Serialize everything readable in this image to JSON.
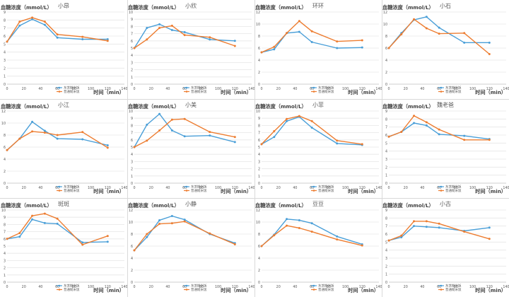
{
  "shared": {
    "ylabel": "血糖浓度（mmol/L）",
    "xlabel": "时间（min）",
    "x_ticks": [
      0,
      20,
      40,
      60,
      80,
      100,
      120,
      140
    ],
    "legend": [
      "东芝糙米饭",
      "普通糙米饭"
    ],
    "colors": {
      "series1": "#4a9fd8",
      "series2": "#ed7d31",
      "grid": "#e6e6e6",
      "axis": "#bfbfbf",
      "text": "#595959"
    }
  },
  "chart_data": [
    {
      "type": "line",
      "title": "小昂",
      "ylim": [
        0,
        9
      ],
      "yticks": [
        0,
        1,
        2,
        3,
        4,
        5,
        6,
        7,
        8,
        9
      ],
      "x": [
        0,
        15,
        30,
        45,
        60,
        90,
        120
      ],
      "series": [
        {
          "name": "东芝糙米饭",
          "values": [
            5.3,
            7.3,
            8.1,
            7.4,
            5.8,
            5.6,
            5.6
          ]
        },
        {
          "name": "普通糙米饭",
          "values": [
            5.3,
            7.8,
            8.3,
            7.8,
            6.2,
            5.9,
            5.4
          ]
        }
      ]
    },
    {
      "type": "line",
      "title": "小欣",
      "ylim": [
        0,
        10
      ],
      "yticks": [
        0,
        1,
        2,
        3,
        4,
        5,
        6,
        7,
        8,
        9,
        10
      ],
      "x": [
        0,
        15,
        30,
        45,
        60,
        90,
        120
      ],
      "series": [
        {
          "name": "东芝糙米饭",
          "values": [
            5.0,
            7.8,
            8.3,
            7.5,
            7.2,
            6.2,
            6.0
          ]
        },
        {
          "name": "普通糙米饭",
          "values": [
            5.0,
            6.2,
            7.8,
            8.1,
            6.8,
            6.5,
            5.3
          ]
        }
      ]
    },
    {
      "type": "line",
      "title": "环环",
      "ylim": [
        0,
        12
      ],
      "yticks": [
        0,
        2,
        4,
        6,
        8,
        10,
        12
      ],
      "x": [
        0,
        15,
        30,
        45,
        60,
        90,
        120
      ],
      "series": [
        {
          "name": "东芝糙米饭",
          "values": [
            5.3,
            5.8,
            8.5,
            8.7,
            7.0,
            6.0,
            6.1
          ]
        },
        {
          "name": "普通糙米饭",
          "values": [
            5.3,
            6.2,
            8.5,
            10.5,
            8.8,
            7.1,
            7.3
          ]
        }
      ]
    },
    {
      "type": "line",
      "title": "小石",
      "ylim": [
        0,
        12
      ],
      "yticks": [
        0,
        2,
        4,
        6,
        8,
        10,
        12
      ],
      "x": [
        0,
        15,
        30,
        45,
        60,
        90,
        120
      ],
      "series": [
        {
          "name": "东芝糙米饭",
          "values": [
            6.0,
            8.5,
            10.7,
            11.2,
            9.4,
            6.9,
            6.9
          ]
        },
        {
          "name": "普通糙米饭",
          "values": [
            6.0,
            8.3,
            10.8,
            9.3,
            8.4,
            8.5,
            5.0
          ]
        }
      ]
    },
    {
      "type": "line",
      "title": "小江",
      "ylim": [
        0,
        12
      ],
      "yticks": [
        0,
        2,
        4,
        6,
        8,
        10,
        12
      ],
      "x": [
        0,
        15,
        30,
        45,
        60,
        90,
        120
      ],
      "series": [
        {
          "name": "东芝糙米饭",
          "values": [
            5.5,
            7.4,
            10.2,
            8.7,
            7.4,
            7.3,
            6.3
          ]
        },
        {
          "name": "普通糙米饭",
          "values": [
            5.5,
            7.4,
            8.6,
            8.4,
            8.0,
            8.5,
            5.9
          ]
        }
      ]
    },
    {
      "type": "line",
      "title": "小美",
      "ylim": [
        0,
        10
      ],
      "yticks": [
        0,
        1,
        2,
        3,
        4,
        5,
        6,
        7,
        8,
        9,
        10
      ],
      "x": [
        0,
        15,
        30,
        45,
        60,
        90,
        120
      ],
      "series": [
        {
          "name": "东芝糙米饭",
          "values": [
            5.0,
            8.1,
            9.6,
            7.3,
            6.5,
            6.6,
            5.7
          ]
        },
        {
          "name": "普通糙米饭",
          "values": [
            5.0,
            5.9,
            7.3,
            8.8,
            8.9,
            7.1,
            6.4
          ]
        }
      ]
    },
    {
      "type": "line",
      "title": "小菲",
      "ylim": [
        0,
        10
      ],
      "yticks": [
        0,
        1,
        2,
        3,
        4,
        5,
        6,
        7,
        8,
        9,
        10
      ],
      "x": [
        0,
        15,
        30,
        45,
        60,
        90,
        120
      ],
      "series": [
        {
          "name": "东芝糙米饭",
          "values": [
            5.4,
            6.4,
            8.6,
            9.2,
            7.7,
            5.5,
            5.3
          ]
        },
        {
          "name": "普通糙米饭",
          "values": [
            5.4,
            7.2,
            8.9,
            9.3,
            8.6,
            5.9,
            5.4
          ]
        }
      ]
    },
    {
      "type": "line",
      "title": "魏老爸",
      "ylim": [
        0,
        9
      ],
      "yticks": [
        0,
        1,
        2,
        3,
        4,
        5,
        6,
        7,
        8,
        9
      ],
      "x": [
        0,
        15,
        30,
        45,
        60,
        90,
        120
      ],
      "series": [
        {
          "name": "东芝糙米饭",
          "values": [
            5.8,
            6.4,
            7.5,
            7.2,
            6.1,
            5.9,
            5.5
          ]
        },
        {
          "name": "普通糙米饭",
          "values": [
            5.8,
            6.4,
            8.4,
            7.6,
            6.7,
            5.4,
            5.4
          ]
        }
      ]
    },
    {
      "type": "line",
      "title": "斑斑",
      "ylim": [
        0,
        10
      ],
      "yticks": [
        0,
        1,
        2,
        3,
        4,
        5,
        6,
        7,
        8,
        9,
        10
      ],
      "x": [
        0,
        15,
        30,
        45,
        60,
        90,
        120
      ],
      "series": [
        {
          "name": "东芝糙米饭",
          "values": [
            6.0,
            6.3,
            8.7,
            8.2,
            8.1,
            5.5,
            5.6
          ]
        },
        {
          "name": "普通糙米饭",
          "values": [
            6.0,
            6.8,
            9.2,
            9.5,
            8.8,
            5.2,
            6.4
          ]
        }
      ]
    },
    {
      "type": "line",
      "title": "小静",
      "ylim": [
        0,
        12
      ],
      "yticks": [
        0,
        2,
        4,
        6,
        8,
        10,
        12
      ],
      "x": [
        0,
        15,
        30,
        45,
        60,
        90,
        120
      ],
      "series": [
        {
          "name": "东芝糙米饭",
          "values": [
            5.3,
            7.5,
            10.3,
            11.0,
            10.4,
            8.0,
            6.5
          ]
        },
        {
          "name": "普通糙米饭",
          "values": [
            5.3,
            8.0,
            9.7,
            9.8,
            10.1,
            8.1,
            6.3
          ]
        }
      ]
    },
    {
      "type": "line",
      "title": "豆豆",
      "ylim": [
        0,
        12
      ],
      "yticks": [
        0,
        2,
        4,
        6,
        8,
        10,
        12
      ],
      "x": [
        0,
        15,
        30,
        45,
        60,
        90,
        120
      ],
      "series": [
        {
          "name": "东芝糙米饭",
          "values": [
            6.0,
            7.9,
            10.5,
            10.3,
            9.8,
            7.6,
            6.3
          ]
        },
        {
          "name": "普通糙米饭",
          "values": [
            6.0,
            7.8,
            9.4,
            9.0,
            8.4,
            7.1,
            6.1
          ]
        }
      ]
    },
    {
      "type": "line",
      "title": "小古",
      "ylim": [
        0,
        9
      ],
      "yticks": [
        0,
        1,
        2,
        3,
        4,
        5,
        6,
        7,
        8,
        9
      ],
      "x": [
        0,
        15,
        30,
        45,
        60,
        90,
        120
      ],
      "series": [
        {
          "name": "东芝糙米饭",
          "values": [
            5.2,
            5.6,
            7.0,
            6.9,
            6.8,
            6.4,
            6.8
          ]
        },
        {
          "name": "普通糙米饭",
          "values": [
            5.2,
            5.8,
            7.6,
            7.6,
            7.3,
            6.3,
            5.4
          ]
        }
      ]
    }
  ]
}
